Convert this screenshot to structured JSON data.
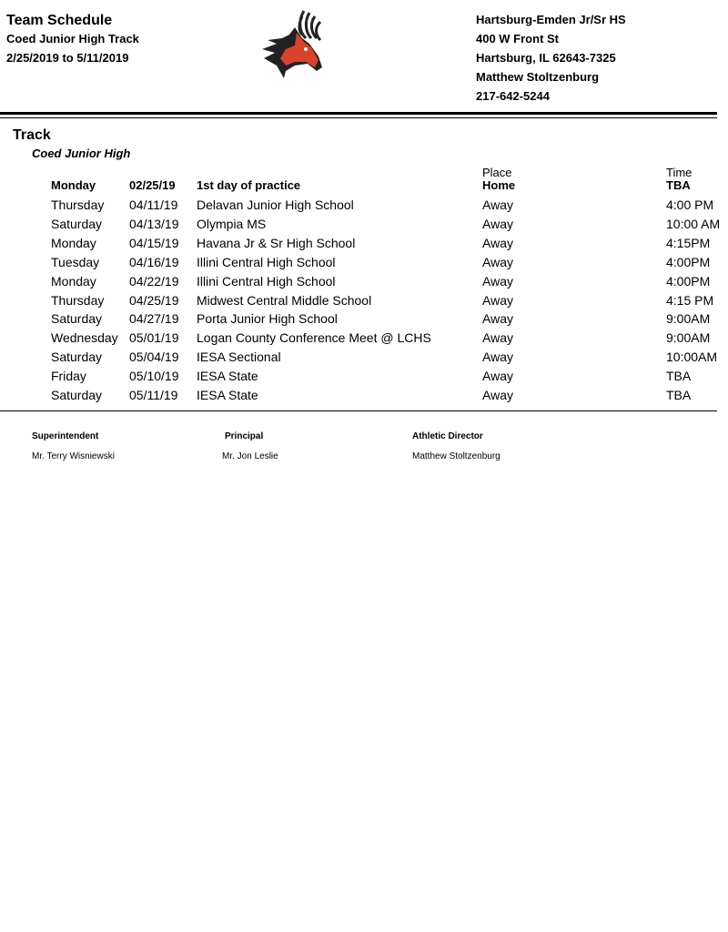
{
  "header": {
    "title": "Team Schedule",
    "subtitle": "Coed Junior High Track",
    "date_range": "2/25/2019 to 5/11/2019",
    "logo": "deer-mascot-logo",
    "school": {
      "name": "Hartsburg-Emden Jr/Sr HS",
      "address": "400 W Front St",
      "city": "Hartsburg, IL 62643-7325",
      "contact": "Matthew Stoltzenburg",
      "phone": "217-642-5244"
    }
  },
  "section": {
    "sport": "Track",
    "level": "Coed Junior High",
    "place_label": "Place",
    "time_label": "Time",
    "first_row": {
      "day": "Monday",
      "date": "02/25/19",
      "event": "1st day of practice",
      "place": "Home",
      "time": "TBA"
    },
    "rows": [
      {
        "day": "Thursday",
        "date": "04/11/19",
        "event": "Delavan Junior High School",
        "place": "Away",
        "time": "4:00 PM"
      },
      {
        "day": "Saturday",
        "date": "04/13/19",
        "event": "Olympia MS",
        "place": "Away",
        "time": "10:00 AM"
      },
      {
        "day": "Monday",
        "date": "04/15/19",
        "event": "Havana Jr & Sr High School",
        "place": "Away",
        "time": "4:15PM"
      },
      {
        "day": "Tuesday",
        "date": "04/16/19",
        "event": "Illini Central High School",
        "place": "Away",
        "time": "4:00PM"
      },
      {
        "day": "Monday",
        "date": "04/22/19",
        "event": "Illini Central High School",
        "place": "Away",
        "time": "4:00PM"
      },
      {
        "day": "Thursday",
        "date": "04/25/19",
        "event": "Midwest Central Middle School",
        "place": "Away",
        "time": "4:15 PM"
      },
      {
        "day": "Saturday",
        "date": "04/27/19",
        "event": "Porta Junior High School",
        "place": "Away",
        "time": "9:00AM"
      },
      {
        "day": "Wednesday",
        "date": "05/01/19",
        "event": "Logan County Conference Meet @ LCHS",
        "place": "Away",
        "time": "9:00AM"
      },
      {
        "day": "Saturday",
        "date": "05/04/19",
        "event": "IESA Sectional",
        "place": "Away",
        "time": "10:00AM"
      },
      {
        "day": "Friday",
        "date": "05/10/19",
        "event": "IESA State",
        "place": "Away",
        "time": "TBA"
      },
      {
        "day": "Saturday",
        "date": "05/11/19",
        "event": "IESA State",
        "place": "Away",
        "time": "TBA"
      }
    ]
  },
  "footer": {
    "superintendent_label": "Superintendent",
    "superintendent": "Mr. Terry Wisniewski",
    "principal_label": "Principal",
    "principal": "Mr. Jon Leslie",
    "ad_label": "Athletic Director",
    "ad": "Matthew Stoltzenburg"
  }
}
